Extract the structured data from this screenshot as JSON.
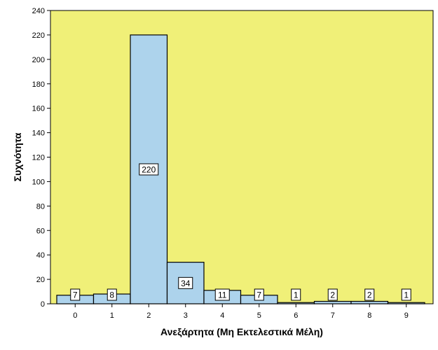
{
  "chart_data": {
    "type": "bar",
    "categories": [
      "0",
      "1",
      "2",
      "3",
      "4",
      "5",
      "6",
      "7",
      "8",
      "9"
    ],
    "values": [
      7,
      8,
      220,
      34,
      11,
      7,
      1,
      2,
      2,
      1
    ],
    "data_labels": [
      "7",
      "8",
      "220",
      "34",
      "11",
      "7",
      "1",
      "2",
      "2",
      "1"
    ],
    "xlabel": "Ανεξάρτητα (Μη Εκτελεστικά Μέλη)",
    "ylabel": "Συχνότητα",
    "ylim": [
      0,
      240
    ],
    "yticks": [
      0,
      20,
      40,
      60,
      80,
      100,
      120,
      140,
      160,
      180,
      200,
      220,
      240
    ],
    "grid": false,
    "colors": {
      "plot_background": "#f0f078",
      "bar_fill": "#add3ec",
      "bar_stroke": "#000000"
    }
  }
}
